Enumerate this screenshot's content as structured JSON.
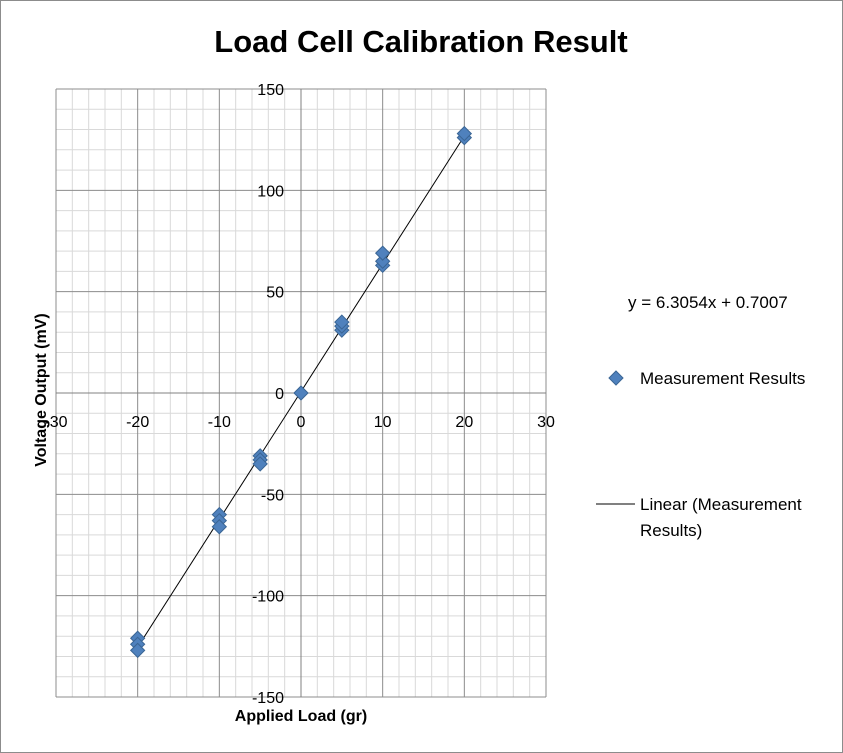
{
  "chart_data": {
    "type": "scatter",
    "title": "Load Cell Calibration Result",
    "xlabel": "Applied Load (gr)",
    "ylabel": "Voltage Output (mV)",
    "xlim": [
      -30,
      30
    ],
    "ylim": [
      -150,
      150
    ],
    "x_major_step": 10,
    "x_minor_step": 2,
    "y_major_step": 50,
    "y_minor_step": 10,
    "grid": true,
    "legend_position": "right",
    "series": [
      {
        "name": "Measurement Results",
        "marker": "diamond",
        "color": "#4F81BD",
        "points": [
          {
            "x": -20,
            "y": -121
          },
          {
            "x": -20,
            "y": -124
          },
          {
            "x": -20,
            "y": -127
          },
          {
            "x": -10,
            "y": -60
          },
          {
            "x": -10,
            "y": -63
          },
          {
            "x": -10,
            "y": -66
          },
          {
            "x": -5,
            "y": -31
          },
          {
            "x": -5,
            "y": -33
          },
          {
            "x": -5,
            "y": -35
          },
          {
            "x": 0,
            "y": 0
          },
          {
            "x": 5,
            "y": 31
          },
          {
            "x": 5,
            "y": 33
          },
          {
            "x": 5,
            "y": 35
          },
          {
            "x": 10,
            "y": 63
          },
          {
            "x": 10,
            "y": 65
          },
          {
            "x": 10,
            "y": 69
          },
          {
            "x": 20,
            "y": 126
          },
          {
            "x": 20,
            "y": 128
          }
        ]
      }
    ],
    "trendline": {
      "name": "Linear (Measurement Results)",
      "name_lines": [
        "Linear (Measurement",
        "Results)"
      ],
      "slope": 6.3054,
      "intercept": 0.7007,
      "x_range": [
        -20,
        20
      ],
      "color": "#000000",
      "equation": "y = 6.3054x + 0.7007"
    }
  }
}
